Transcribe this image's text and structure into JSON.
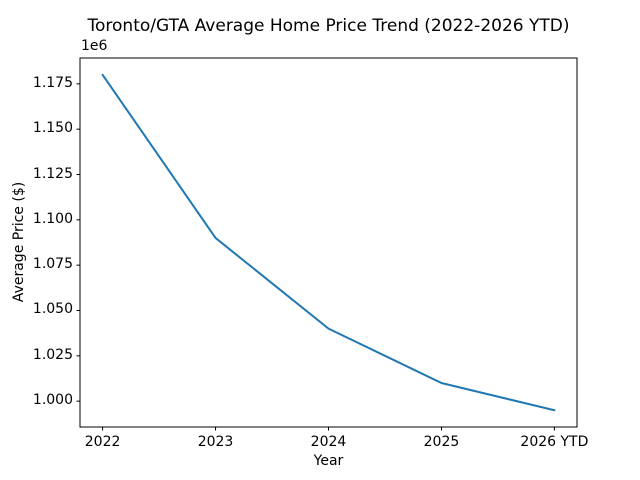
{
  "chart_data": {
    "type": "line",
    "title": "Toronto/GTA Average Home Price Trend (2022-2026 YTD)",
    "xlabel": "Year",
    "ylabel": "Average Price ($)",
    "y_offset_label": "1e6",
    "categories": [
      "2022",
      "2023",
      "2024",
      "2025",
      "2026 YTD"
    ],
    "series": [
      {
        "name": "Average Price",
        "values": [
          1180000,
          1090000,
          1040000,
          1010000,
          995000
        ]
      }
    ],
    "yticks": [
      {
        "label": "1.000",
        "value": 1000000
      },
      {
        "label": "1.025",
        "value": 1025000
      },
      {
        "label": "1.050",
        "value": 1050000
      },
      {
        "label": "1.075",
        "value": 1075000
      },
      {
        "label": "1.100",
        "value": 1100000
      },
      {
        "label": "1.125",
        "value": 1125000
      },
      {
        "label": "1.150",
        "value": 1150000
      },
      {
        "label": "1.175",
        "value": 1175000
      }
    ],
    "ylim": [
      985750,
      1189250
    ],
    "xlim": [
      -0.2,
      4.2
    ],
    "grid": false,
    "legend": false,
    "line_color": "#1f77b4",
    "axis_color": "#000000",
    "background_color": "#ffffff"
  }
}
